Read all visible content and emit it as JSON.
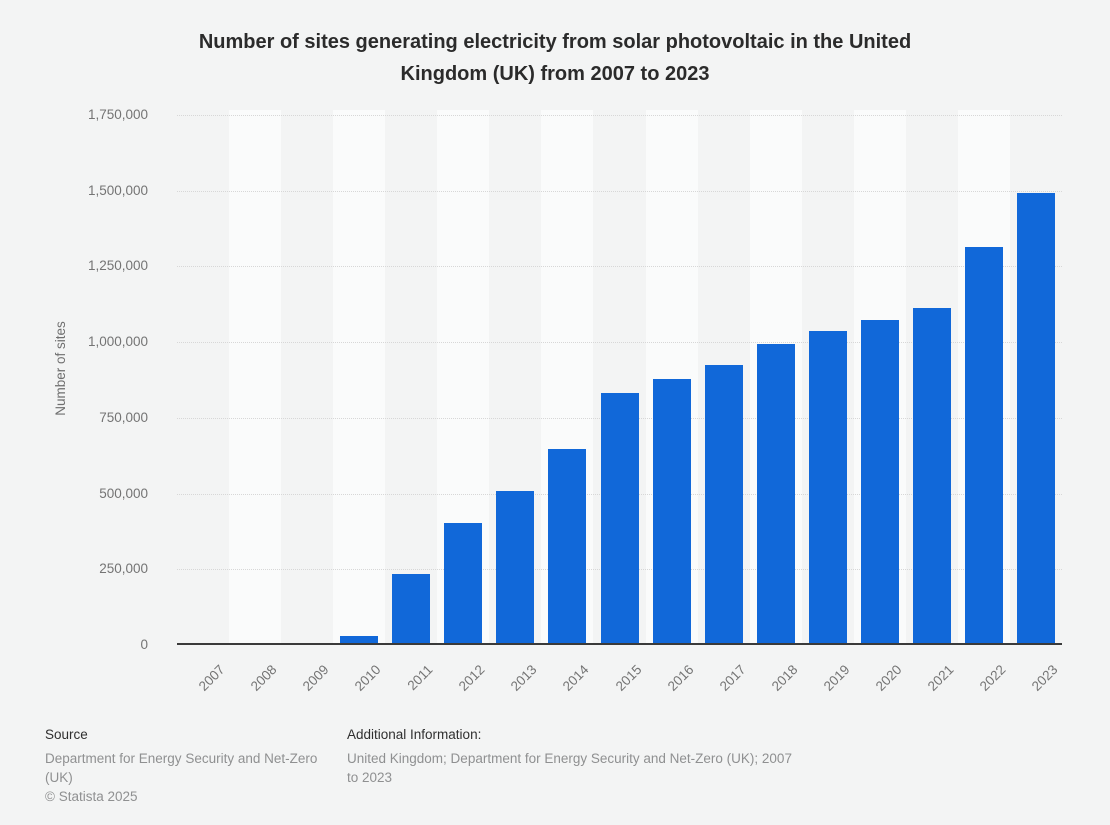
{
  "page": {
    "background": "#f3f4f4",
    "title_line1": "Number of sites generating electricity from solar photovoltaic in the United",
    "title_line2": "Kingdom (UK) from 2007 to 2023"
  },
  "chart_data": {
    "type": "bar",
    "title": "Number of sites generating electricity from solar photovoltaic in the United Kingdom (UK) from 2007 to 2023",
    "xlabel": "",
    "ylabel": "Number of sites",
    "ylim": [
      0,
      1750000
    ],
    "grid": "horizontal-dotted",
    "legend": "none",
    "bar_color": "#1168d9",
    "categories": [
      "2007",
      "2008",
      "2009",
      "2010",
      "2011",
      "2012",
      "2013",
      "2014",
      "2015",
      "2016",
      "2017",
      "2018",
      "2019",
      "2020",
      "2021",
      "2022",
      "2023"
    ],
    "values": [
      500,
      1500,
      3000,
      26000,
      230000,
      400000,
      505000,
      645000,
      830000,
      875000,
      920000,
      990000,
      1035000,
      1070000,
      1110000,
      1310000,
      1490000
    ],
    "yticks": [
      {
        "value": 0,
        "label": "0"
      },
      {
        "value": 250000,
        "label": "250,000"
      },
      {
        "value": 500000,
        "label": "500,000"
      },
      {
        "value": 750000,
        "label": "750,000"
      },
      {
        "value": 1000000,
        "label": "1,000,000"
      },
      {
        "value": 1250000,
        "label": "1,250,000"
      },
      {
        "value": 1500000,
        "label": "1,500,000"
      },
      {
        "value": 1750000,
        "label": "1,750,000"
      }
    ]
  },
  "footer": {
    "source_heading": "Source",
    "source_body": "Department for Energy Security and Net-Zero (UK)",
    "source_body_lines": [
      "Department for Energy Security and Net-Zero",
      "(UK)"
    ],
    "copyright": "© Statista 2025",
    "additional_heading": "Additional Information:",
    "additional_body": "United Kingdom; Department for Energy Security and Net-Zero (UK); 2007 to 2023",
    "additional_body_lines": [
      "United Kingdom; Department for Energy Security and Net-Zero (UK); 2007",
      "to 2023"
    ]
  }
}
